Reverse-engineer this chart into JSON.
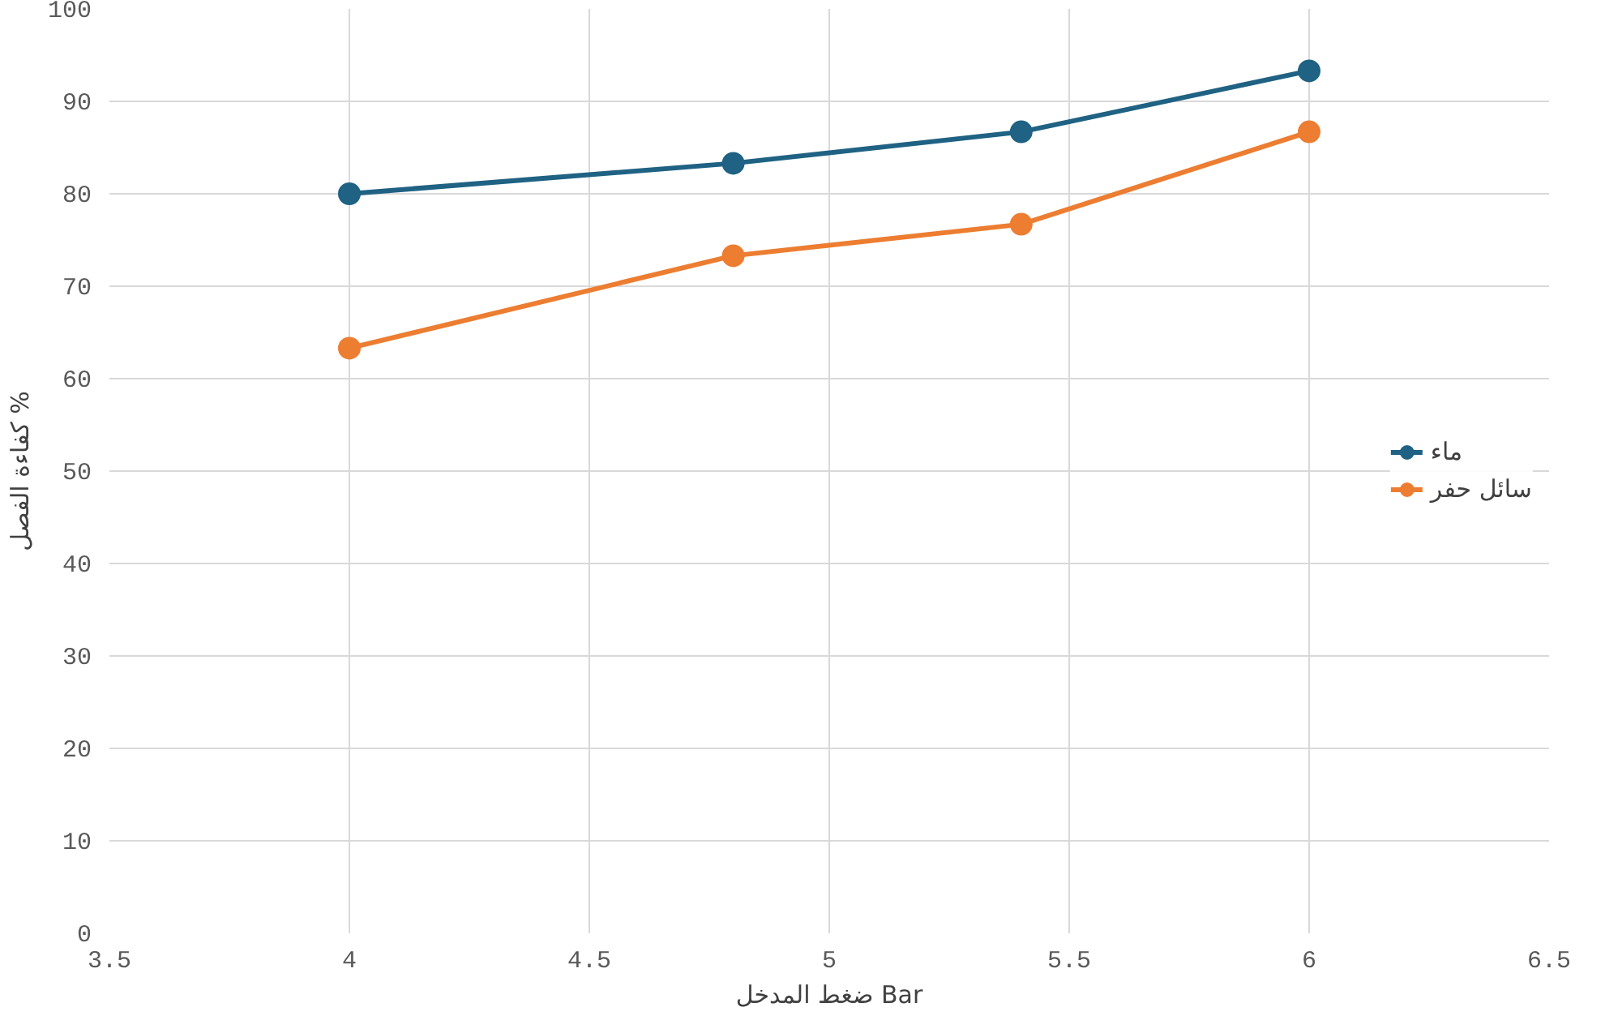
{
  "chart_data": {
    "type": "line",
    "xlabel": "ضغط المدخل Bar",
    "ylabel": "كفاءة الفصل %",
    "x": [
      4,
      4.8,
      5.4,
      6
    ],
    "series": [
      {
        "name": "ماء",
        "color": "#1f6283",
        "values": [
          80,
          83.3,
          86.7,
          93.3
        ]
      },
      {
        "name": "سائل حفر",
        "color": "#ed7d31",
        "values": [
          63.3,
          73.3,
          76.7,
          86.7
        ]
      }
    ],
    "xlim": [
      3.5,
      6.5
    ],
    "xticks": [
      3.5,
      4,
      4.5,
      5,
      5.5,
      6,
      6.5
    ],
    "ylim": [
      0,
      100
    ],
    "yticks": [
      0,
      10,
      20,
      30,
      40,
      50,
      60,
      70,
      80,
      90,
      100
    ],
    "grid": true,
    "legend": "right",
    "marker": "circle",
    "line_style": "solid"
  }
}
